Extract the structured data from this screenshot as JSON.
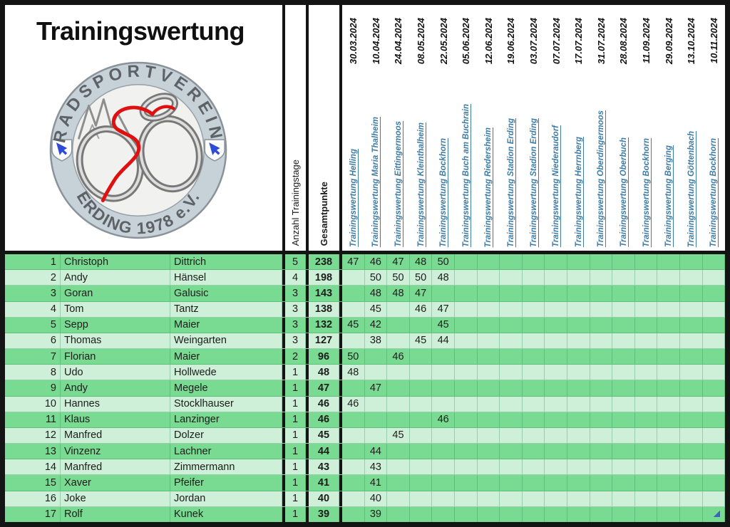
{
  "title": "Trainingswertung",
  "logo": {
    "top_text": "RADSPORTVEREIN",
    "bottom_text": "ERDING 1978 e.V."
  },
  "summary_columns": {
    "days_label": "Anzahl Trainingstage",
    "points_label": "Gesamtpunkte"
  },
  "colors": {
    "row_dark_green": "#79da92",
    "row_light_green": "#cff0d8",
    "grid_line_green": "#4caa6e",
    "link_blue": "#3e7ca6",
    "frame_black": "#141414",
    "logo_ring_gray": "#c7d1d8",
    "logo_red": "#e01010",
    "shield_arrow_blue": "#2e4bd8",
    "selection_handle_blue": "#3b63c4"
  },
  "columns": [
    {
      "date": "30.03.2024",
      "event": "Trainingswertung Helling"
    },
    {
      "date": "10.04.2024",
      "event": "Trainingswertung Maria Thalheim"
    },
    {
      "date": "24.04.2024",
      "event": "Trainingswertung Eittingermoos"
    },
    {
      "date": "08.05.2024",
      "event": "Trainingswertung Kleinthalheim"
    },
    {
      "date": "22.05.2024",
      "event": "Trainingswertung Bockhorn"
    },
    {
      "date": "05.06.2024",
      "event": "Trainingswertung Buch am Buchrain"
    },
    {
      "date": "12.06.2024",
      "event": "Trainingswertung Riedersheim"
    },
    {
      "date": "19.06.2024",
      "event": "Trainingswertung Stadion Erding"
    },
    {
      "date": "03.07.2024",
      "event": "Trainingswertung Stadion Erding"
    },
    {
      "date": "07.07.2024",
      "event": "Trainingswertung Niederaudorf"
    },
    {
      "date": "17.07.2024",
      "event": "Trainingswertung Herrnberg"
    },
    {
      "date": "31.07.2024",
      "event": "Trainingswertung Oberdingermoos"
    },
    {
      "date": "28.08.2024",
      "event": "Trainingswertung Oberbuch"
    },
    {
      "date": "11.09.2024",
      "event": "Trainingswertung Bockhorn"
    },
    {
      "date": "29.09.2024",
      "event": "Trainingswertung Berging"
    },
    {
      "date": "13.10.2024",
      "event": "Trainingswertung Göttenbach"
    },
    {
      "date": "10.11.2024",
      "event": "Trainingswertung Bockhorn"
    }
  ],
  "rows": [
    {
      "rank": 1,
      "first_name": "Christoph",
      "last_name": "Dittrich",
      "days": 5,
      "total": 238,
      "scores": [
        47,
        46,
        47,
        48,
        50,
        null,
        null,
        null,
        null,
        null,
        null,
        null,
        null,
        null,
        null,
        null,
        null
      ]
    },
    {
      "rank": 2,
      "first_name": "Andy",
      "last_name": "Hänsel",
      "days": 4,
      "total": 198,
      "scores": [
        null,
        50,
        50,
        50,
        48,
        null,
        null,
        null,
        null,
        null,
        null,
        null,
        null,
        null,
        null,
        null,
        null
      ]
    },
    {
      "rank": 3,
      "first_name": "Goran",
      "last_name": "Galusic",
      "days": 3,
      "total": 143,
      "scores": [
        null,
        48,
        48,
        47,
        null,
        null,
        null,
        null,
        null,
        null,
        null,
        null,
        null,
        null,
        null,
        null,
        null
      ]
    },
    {
      "rank": 4,
      "first_name": "Tom",
      "last_name": "Tantz",
      "days": 3,
      "total": 138,
      "scores": [
        null,
        45,
        null,
        46,
        47,
        null,
        null,
        null,
        null,
        null,
        null,
        null,
        null,
        null,
        null,
        null,
        null
      ]
    },
    {
      "rank": 5,
      "first_name": "Sepp",
      "last_name": "Maier",
      "days": 3,
      "total": 132,
      "scores": [
        45,
        42,
        null,
        null,
        45,
        null,
        null,
        null,
        null,
        null,
        null,
        null,
        null,
        null,
        null,
        null,
        null
      ]
    },
    {
      "rank": 6,
      "first_name": "Thomas",
      "last_name": "Weingarten",
      "days": 3,
      "total": 127,
      "scores": [
        null,
        38,
        null,
        45,
        44,
        null,
        null,
        null,
        null,
        null,
        null,
        null,
        null,
        null,
        null,
        null,
        null
      ]
    },
    {
      "rank": 7,
      "first_name": "Florian",
      "last_name": "Maier",
      "days": 2,
      "total": 96,
      "scores": [
        50,
        null,
        46,
        null,
        null,
        null,
        null,
        null,
        null,
        null,
        null,
        null,
        null,
        null,
        null,
        null,
        null
      ]
    },
    {
      "rank": 8,
      "first_name": "Udo",
      "last_name": "Hollwede",
      "days": 1,
      "total": 48,
      "scores": [
        48,
        null,
        null,
        null,
        null,
        null,
        null,
        null,
        null,
        null,
        null,
        null,
        null,
        null,
        null,
        null,
        null
      ]
    },
    {
      "rank": 9,
      "first_name": "Andy",
      "last_name": "Megele",
      "days": 1,
      "total": 47,
      "scores": [
        null,
        47,
        null,
        null,
        null,
        null,
        null,
        null,
        null,
        null,
        null,
        null,
        null,
        null,
        null,
        null,
        null
      ]
    },
    {
      "rank": 10,
      "first_name": "Hannes",
      "last_name": "Stocklhauser",
      "days": 1,
      "total": 46,
      "scores": [
        46,
        null,
        null,
        null,
        null,
        null,
        null,
        null,
        null,
        null,
        null,
        null,
        null,
        null,
        null,
        null,
        null
      ]
    },
    {
      "rank": 11,
      "first_name": "Klaus",
      "last_name": "Lanzinger",
      "days": 1,
      "total": 46,
      "scores": [
        null,
        null,
        null,
        null,
        46,
        null,
        null,
        null,
        null,
        null,
        null,
        null,
        null,
        null,
        null,
        null,
        null
      ]
    },
    {
      "rank": 12,
      "first_name": "Manfred",
      "last_name": "Dolzer",
      "days": 1,
      "total": 45,
      "scores": [
        null,
        null,
        45,
        null,
        null,
        null,
        null,
        null,
        null,
        null,
        null,
        null,
        null,
        null,
        null,
        null,
        null
      ]
    },
    {
      "rank": 13,
      "first_name": "Vinzenz",
      "last_name": "Lachner",
      "days": 1,
      "total": 44,
      "scores": [
        null,
        44,
        null,
        null,
        null,
        null,
        null,
        null,
        null,
        null,
        null,
        null,
        null,
        null,
        null,
        null,
        null
      ]
    },
    {
      "rank": 14,
      "first_name": "Manfred",
      "last_name": "Zimmermann",
      "days": 1,
      "total": 43,
      "scores": [
        null,
        43,
        null,
        null,
        null,
        null,
        null,
        null,
        null,
        null,
        null,
        null,
        null,
        null,
        null,
        null,
        null
      ]
    },
    {
      "rank": 15,
      "first_name": "Xaver",
      "last_name": "Pfeifer",
      "days": 1,
      "total": 41,
      "scores": [
        null,
        41,
        null,
        null,
        null,
        null,
        null,
        null,
        null,
        null,
        null,
        null,
        null,
        null,
        null,
        null,
        null
      ]
    },
    {
      "rank": 16,
      "first_name": "Joke",
      "last_name": "Jordan",
      "days": 1,
      "total": 40,
      "scores": [
        null,
        40,
        null,
        null,
        null,
        null,
        null,
        null,
        null,
        null,
        null,
        null,
        null,
        null,
        null,
        null,
        null
      ]
    },
    {
      "rank": 17,
      "first_name": "Rolf",
      "last_name": "Kunek",
      "days": 1,
      "total": 39,
      "scores": [
        null,
        39,
        null,
        null,
        null,
        null,
        null,
        null,
        null,
        null,
        null,
        null,
        null,
        null,
        null,
        null,
        null
      ]
    }
  ]
}
